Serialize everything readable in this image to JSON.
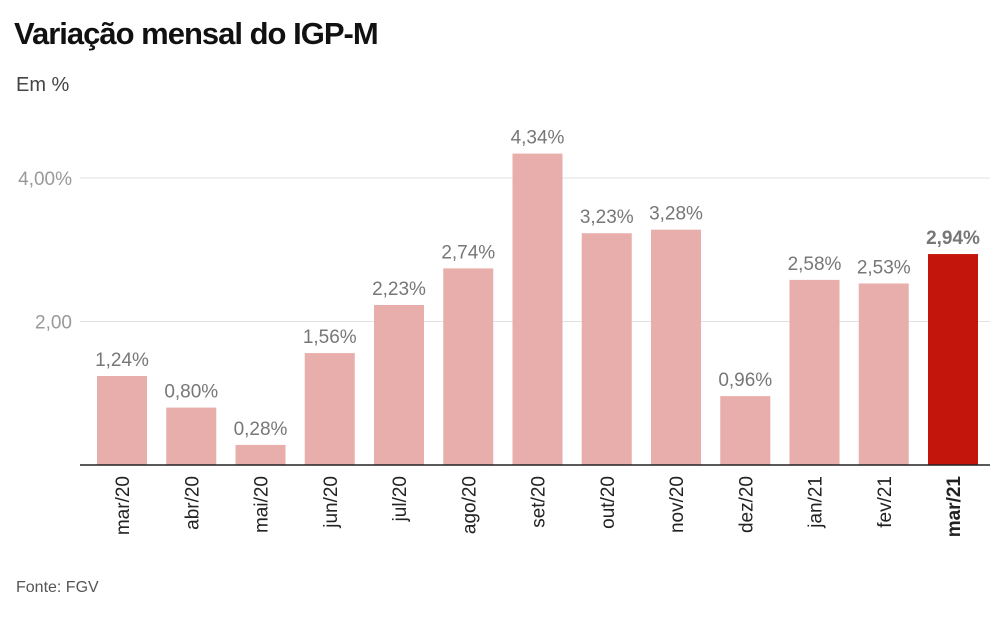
{
  "chart_data": {
    "type": "bar",
    "title": "Variação mensal do IGP-M",
    "subtitle": "Em %",
    "source": "Fonte: FGV",
    "categories": [
      "mar/20",
      "abr/20",
      "mai/20",
      "jun/20",
      "jul/20",
      "ago/20",
      "set/20",
      "out/20",
      "nov/20",
      "dez/20",
      "jan/21",
      "fev/21",
      "mar/21"
    ],
    "values": [
      1.24,
      0.8,
      0.28,
      1.56,
      2.23,
      2.74,
      4.34,
      3.23,
      3.28,
      0.96,
      2.58,
      2.53,
      2.94
    ],
    "data_labels": [
      "1,24%",
      "0,80%",
      "0,28%",
      "1,56%",
      "2,23%",
      "2,74%",
      "4,34%",
      "3,23%",
      "3,28%",
      "0,96%",
      "2,58%",
      "2,53%",
      "2,94%"
    ],
    "highlight_index": 12,
    "yticks": [
      {
        "value": 2,
        "label": "2,00"
      },
      {
        "value": 4,
        "label": "4,00%"
      }
    ],
    "ylim": [
      0,
      4.5
    ],
    "grid": true,
    "colors": {
      "bar": "#e8aeab",
      "highlight": "#c4150c",
      "label": "#777777",
      "tick": "#999999",
      "grid": "#e2e2e2"
    }
  }
}
